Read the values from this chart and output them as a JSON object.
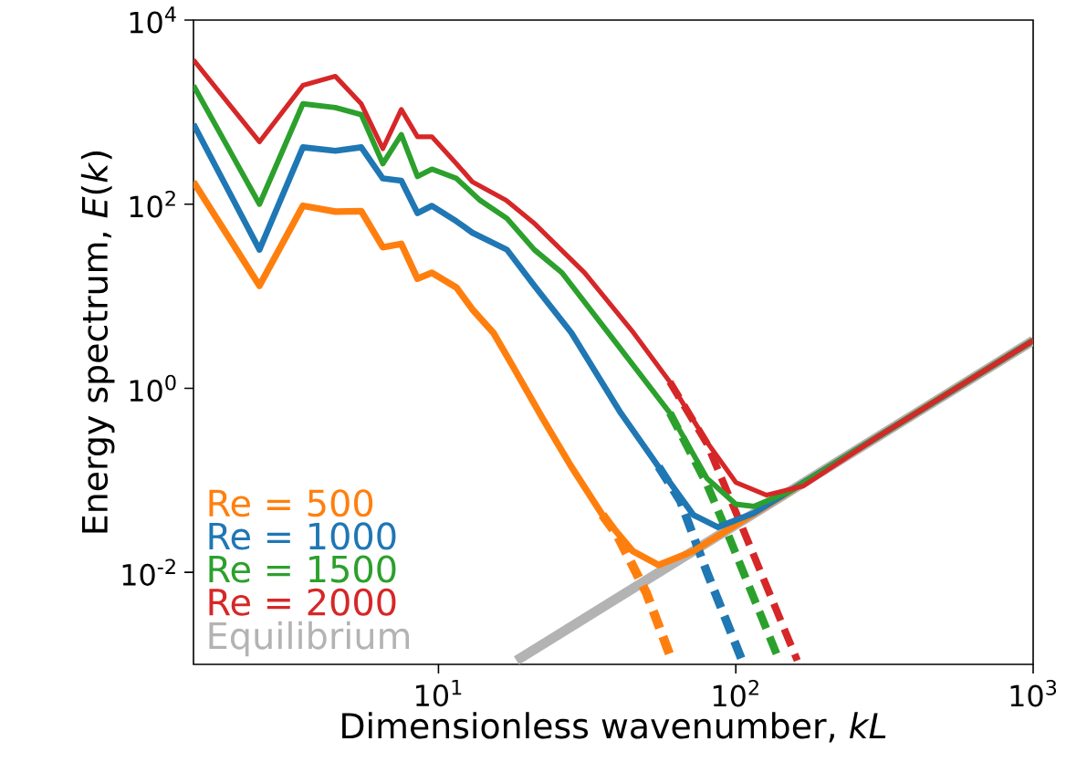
{
  "chart_data": {
    "type": "line",
    "xlabel": "Dimensionless wavenumber, *kL*",
    "ylabel": "Energy spectrum, *E*(*k*)",
    "log": "xy",
    "grid": false,
    "legend": "bottom left",
    "marker": "none",
    "xlim": [
      1.5,
      1000
    ],
    "ylim": [
      0.001,
      10000
    ],
    "xticks": [
      {
        "value": 10,
        "label": "10$^{1}$"
      },
      {
        "value": 100,
        "label": "10$^{2}$"
      },
      {
        "value": 1000,
        "label": "10$^{3}$"
      }
    ],
    "yticks": [
      {
        "value": 0.01,
        "label": "10$^{-2}$"
      },
      {
        "value": 1,
        "label": "10$^{0}$"
      },
      {
        "value": 100,
        "label": "10$^{2}$"
      },
      {
        "value": 10000,
        "label": "10$^{4}$"
      }
    ],
    "series": [
      {
        "name": "Equilibrium",
        "color": "#b3b3b3",
        "line_style": "solid",
        "x": [
          18.3,
          1000
        ],
        "values": [
          0.0011,
          3.3
        ]
      },
      {
        "color": "#ff7f0e",
        "line_style": "dashed",
        "x": [
          35.6,
          40,
          50,
          61
        ],
        "values": [
          0.042,
          0.025,
          0.006,
          0.0011
        ]
      },
      {
        "color": "#1f77b4",
        "line_style": "dashed",
        "x": [
          55,
          65,
          80,
          105
        ],
        "values": [
          0.14,
          0.06,
          0.01,
          0.0011
        ]
      },
      {
        "color": "#2ca02c",
        "line_style": "dashed",
        "x": [
          60,
          80,
          92,
          140
        ],
        "values": [
          0.54,
          0.09,
          0.031,
          0.0011
        ]
      },
      {
        "color": "#d62728",
        "line_style": "dashed",
        "x": [
          60,
          80,
          105,
          161
        ],
        "values": [
          1.17,
          0.25,
          0.031,
          0.0011
        ]
      },
      {
        "name": "Re = 500",
        "color": "#ff7f0e",
        "line_style": "solid",
        "x": [
          1.5,
          2.5,
          3.5,
          4.5,
          5.5,
          6.5,
          7.5,
          8.5,
          9.5,
          11.5,
          13,
          15.3,
          17.6,
          22.4,
          28,
          35.6,
          45,
          55,
          72,
          297,
          1000
        ],
        "values": [
          175,
          13,
          96,
          83,
          84,
          34,
          37,
          15.5,
          18,
          12.4,
          7.2,
          4,
          1.84,
          0.47,
          0.14,
          0.042,
          0.017,
          0.012,
          0.017,
          0.29,
          3.3
        ]
      },
      {
        "name": "Re = 1000",
        "color": "#1f77b4",
        "line_style": "solid",
        "x": [
          1.5,
          2.5,
          3.5,
          4.5,
          5.5,
          6.5,
          7.5,
          8.5,
          9.5,
          11.5,
          13,
          17,
          21,
          28,
          41,
          55,
          72,
          87,
          115,
          297,
          1000
        ],
        "values": [
          740,
          32,
          415,
          380,
          415,
          190,
          180,
          80,
          96,
          65,
          49,
          32,
          13,
          4,
          0.54,
          0.14,
          0.042,
          0.031,
          0.044,
          0.29,
          3.3
        ]
      },
      {
        "name": "Re = 1500",
        "color": "#2ca02c",
        "line_style": "solid",
        "x": [
          1.5,
          2.5,
          3.5,
          4.5,
          5.5,
          6.5,
          7.5,
          8.5,
          9.5,
          11.5,
          13.8,
          17,
          21,
          26,
          39,
          60,
          80,
          100,
          115,
          153,
          297,
          1000
        ],
        "values": [
          1950,
          100,
          1230,
          1120,
          940,
          275,
          570,
          200,
          240,
          190,
          110,
          70,
          32,
          18,
          3.3,
          0.54,
          0.105,
          0.055,
          0.052,
          0.077,
          0.29,
          3.3
        ]
      },
      {
        "name": "Re = 2000",
        "color": "#d62728",
        "line_style": "solid",
        "x": [
          1.5,
          2.5,
          3.5,
          4.5,
          5.5,
          6.5,
          7.5,
          8.5,
          9.5,
          11.5,
          13,
          16.9,
          21.1,
          31,
          45.3,
          60,
          80,
          100,
          127,
          169,
          297,
          1000
        ],
        "values": [
          3700,
          475,
          1950,
          2450,
          1230,
          400,
          1070,
          540,
          540,
          275,
          175,
          110,
          61,
          18,
          4,
          1.17,
          0.26,
          0.095,
          0.069,
          0.087,
          0.29,
          3.3
        ]
      }
    ]
  }
}
